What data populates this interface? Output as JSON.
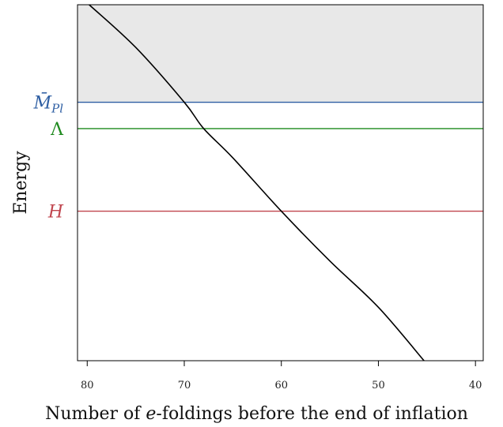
{
  "chart_data": {
    "type": "line",
    "title": "",
    "xlabel": {
      "prefix": "Number of ",
      "italic": "e",
      "suffix": "-foldings before the end of inflation"
    },
    "ylabel": "Energy",
    "x_reversed": true,
    "xlim": [
      81,
      39.2
    ],
    "ylim": [
      0,
      1
    ],
    "x_ticks": [
      80,
      70,
      60,
      50,
      40
    ],
    "y_ticks": [],
    "grid": false,
    "shaded_region": {
      "y_from": 0.726,
      "y_to": 1,
      "color": "#e8e8e8"
    },
    "levels": [
      {
        "key": "mpl",
        "label_main": "M̄",
        "label_sub": "Pl",
        "y": 0.726,
        "color": "#2f5fa3"
      },
      {
        "key": "lambda",
        "label_main": "Λ",
        "label_sub": "",
        "y": 0.652,
        "color": "#1f8a1f"
      },
      {
        "key": "h",
        "label_main": "H",
        "label_sub": "",
        "y": 0.42,
        "color": "#c0454e"
      }
    ],
    "series": [
      {
        "color": "#000000",
        "points": [
          {
            "x": 79.8,
            "y": 1.0
          },
          {
            "x": 75,
            "y": 0.88
          },
          {
            "x": 70,
            "y": 0.726
          },
          {
            "x": 68,
            "y": 0.652
          },
          {
            "x": 65,
            "y": 0.57
          },
          {
            "x": 60,
            "y": 0.42
          },
          {
            "x": 55,
            "y": 0.28
          },
          {
            "x": 50,
            "y": 0.15
          },
          {
            "x": 45.3,
            "y": 0.0
          }
        ]
      }
    ]
  }
}
